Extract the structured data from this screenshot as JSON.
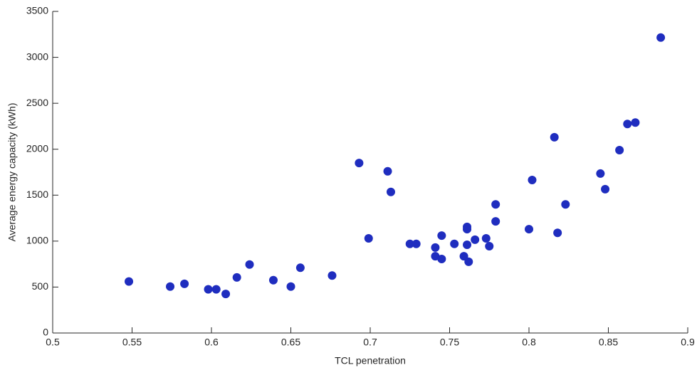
{
  "chart_data": {
    "type": "scatter",
    "xlabel": "TCL penetration",
    "ylabel": "Average energy capacity (kWh)",
    "color": "#1f2dbf",
    "xlim": [
      0.5,
      0.9
    ],
    "xticks": [
      0.5,
      0.55,
      0.6,
      0.65,
      0.7,
      0.75,
      0.8,
      0.85,
      0.9
    ],
    "ylim": [
      0,
      3500
    ],
    "yticks": [
      0,
      500,
      1000,
      1500,
      2000,
      2500,
      3000,
      3500
    ],
    "grid": false,
    "x": [
      0.548,
      0.574,
      0.583,
      0.598,
      0.603,
      0.609,
      0.616,
      0.624,
      0.639,
      0.65,
      0.656,
      0.676,
      0.693,
      0.699,
      0.711,
      0.713,
      0.725,
      0.729,
      0.741,
      0.741,
      0.745,
      0.745,
      0.753,
      0.759,
      0.761,
      0.761,
      0.761,
      0.762,
      0.766,
      0.773,
      0.775,
      0.779,
      0.779,
      0.8,
      0.802,
      0.816,
      0.818,
      0.823,
      0.845,
      0.848,
      0.857,
      0.862,
      0.867,
      0.883
    ],
    "values": [
      560,
      505,
      535,
      475,
      475,
      425,
      605,
      745,
      575,
      505,
      710,
      625,
      1850,
      1030,
      1760,
      1535,
      970,
      970,
      930,
      835,
      1060,
      805,
      970,
      835,
      1155,
      1130,
      960,
      775,
      1015,
      1030,
      945,
      1400,
      1215,
      1130,
      1665,
      2130,
      1090,
      1400,
      1735,
      1565,
      1990,
      2275,
      2290,
      3215
    ]
  }
}
